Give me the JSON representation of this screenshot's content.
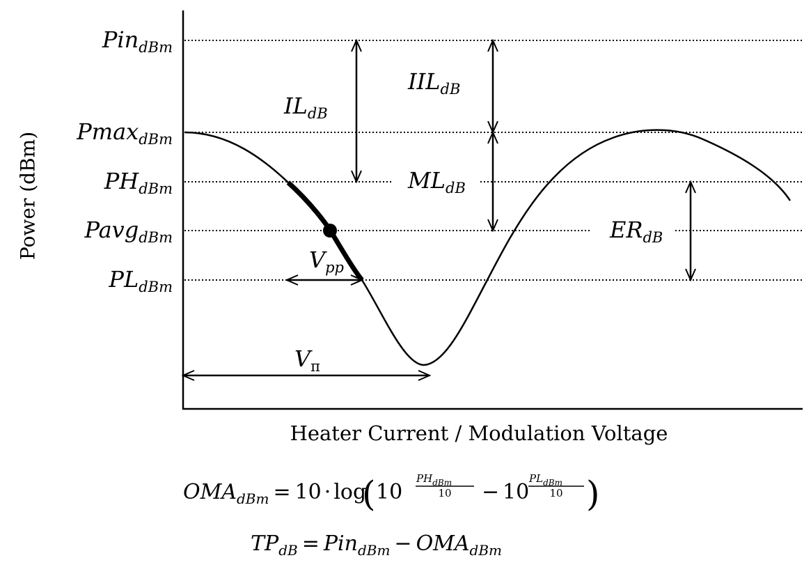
{
  "y_axis_label": "Power (dBm)",
  "x_axis_label": "Heater Current / Modulation Voltage",
  "levels": {
    "pin": {
      "base": "Pin",
      "sub": "dBm"
    },
    "pmax": {
      "base": "Pmax",
      "sub": "dBm"
    },
    "ph": {
      "base": "PH",
      "sub": "dBm"
    },
    "pavg": {
      "base": "Pavg",
      "sub": "dBm"
    },
    "pl": {
      "base": "PL",
      "sub": "dBm"
    }
  },
  "annotations": {
    "il": {
      "base": "IL",
      "sub": "dB"
    },
    "iil": {
      "base": "IIL",
      "sub": "dB"
    },
    "ml": {
      "base": "ML",
      "sub": "dB"
    },
    "er": {
      "base": "ER",
      "sub": "dB"
    },
    "vpp": {
      "base": "V",
      "sub": "pp"
    },
    "vpi": {
      "base": "V",
      "sub": "π"
    }
  },
  "equations": {
    "oma": {
      "lhs_base": "OMA",
      "lhs_sub": "dBm",
      "eq": "=",
      "ten": "10",
      "dot": "·",
      "log": "log",
      "pow_base": "10",
      "num1_base": "PH",
      "num1_sub": "dBm",
      "den": "10",
      "minus": "−",
      "num2_base": "PL",
      "num2_sub": "dBm"
    },
    "tp": {
      "lhs_base": "TP",
      "lhs_sub": "dB",
      "eq": "=",
      "t1_base": "Pin",
      "t1_sub": "dBm",
      "minus": "−",
      "t2_base": "OMA",
      "t2_sub": "dBm"
    }
  }
}
